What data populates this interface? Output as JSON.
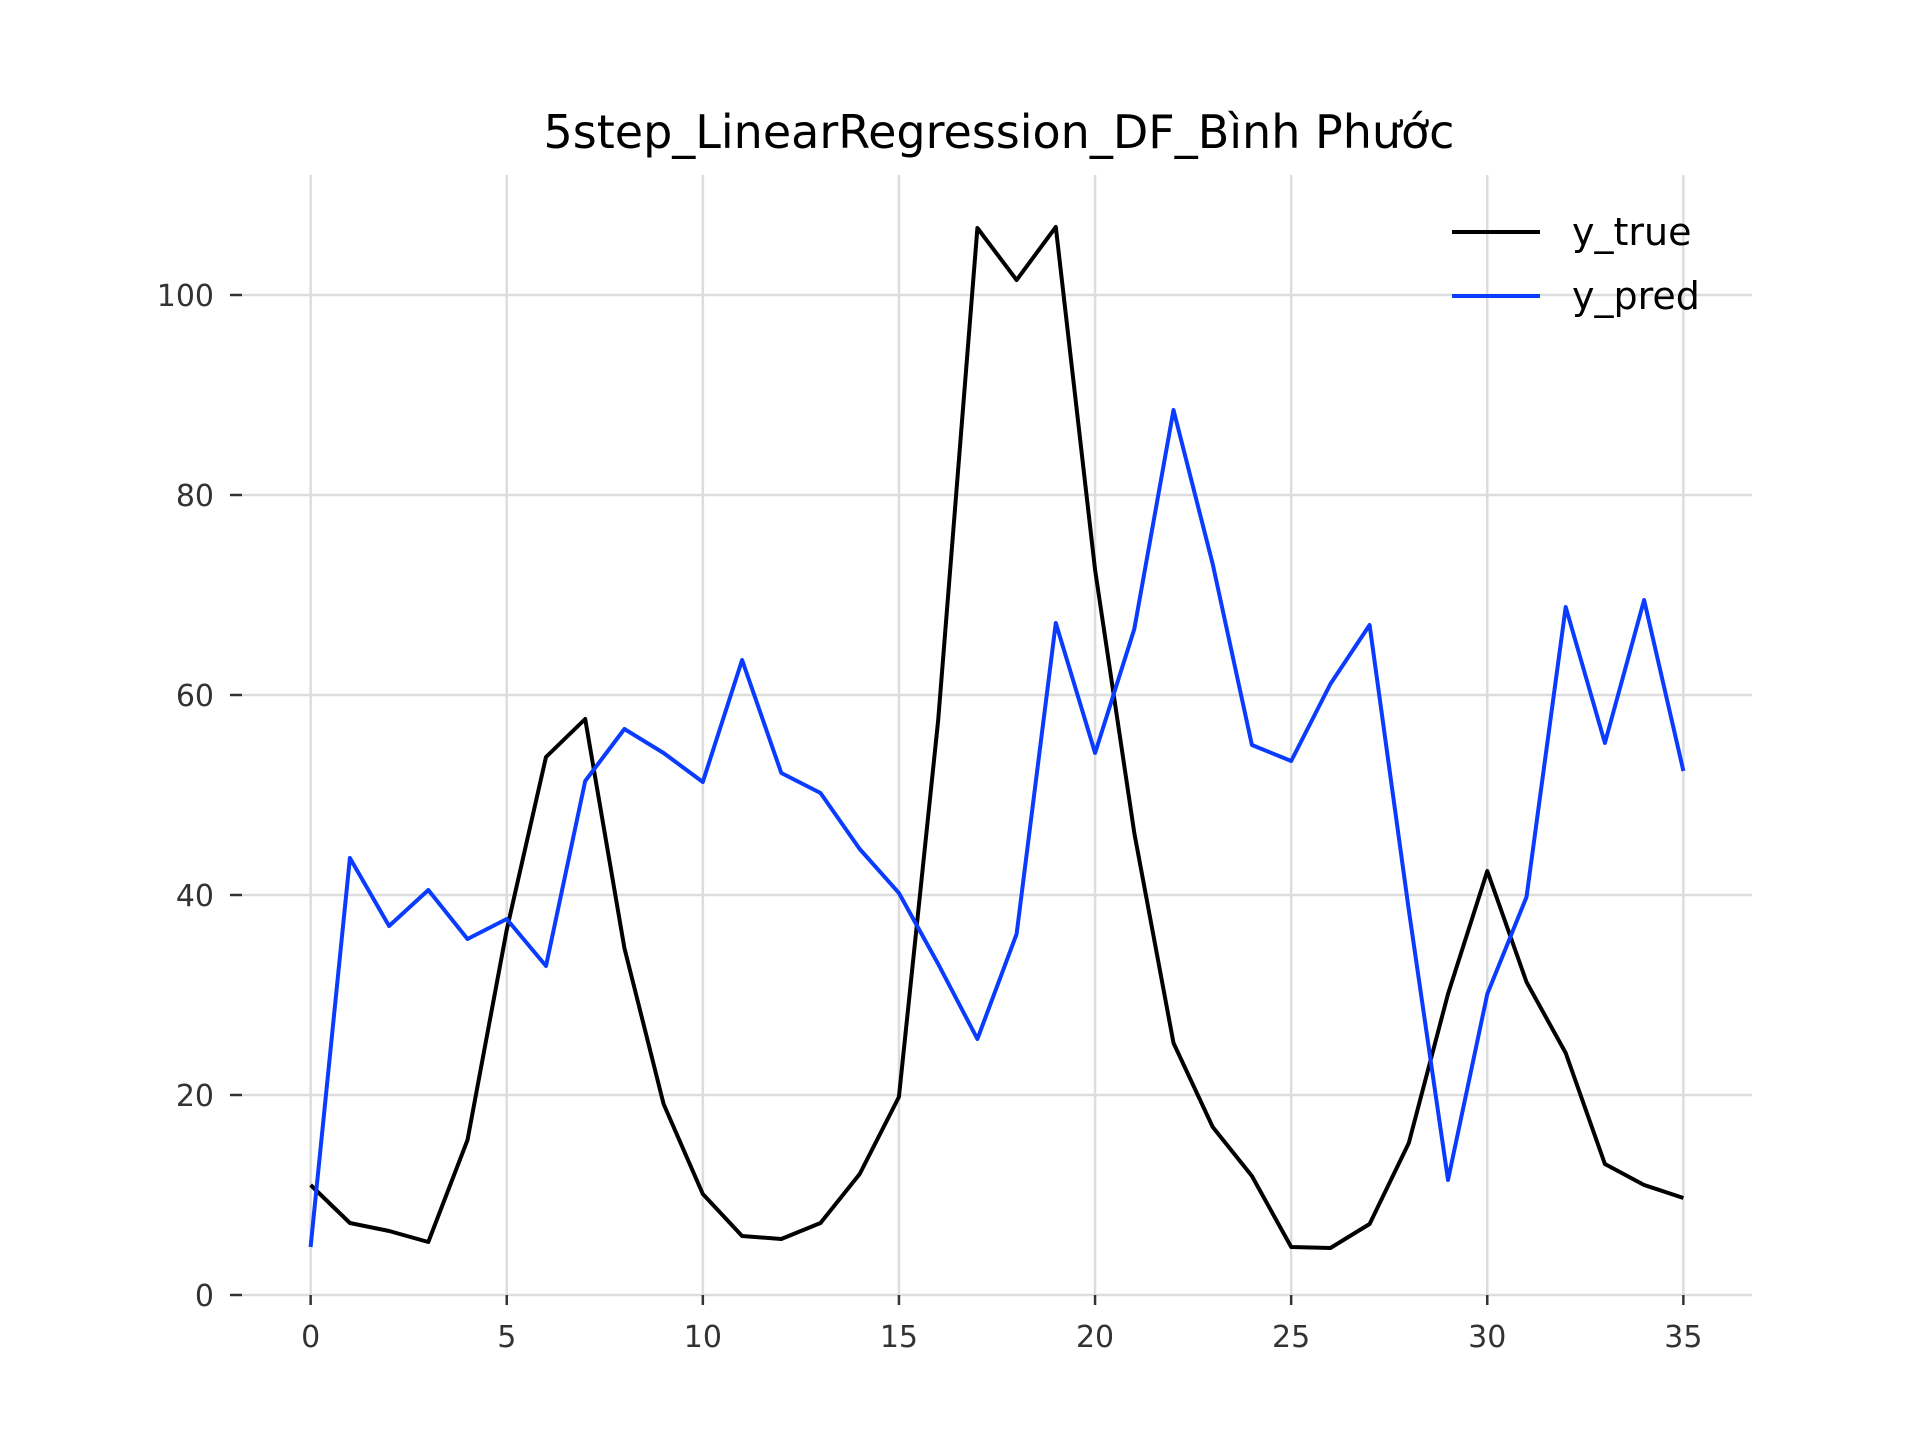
{
  "chart_data": {
    "type": "line",
    "title": "5step_LinearRegression_DF_Bình Phước",
    "xlabel": "",
    "ylabel": "",
    "xlim": [
      -1.75,
      36.75
    ],
    "ylim": [
      0,
      112
    ],
    "xticks": [
      0,
      5,
      10,
      15,
      20,
      25,
      30,
      35
    ],
    "yticks": [
      0,
      20,
      40,
      60,
      80,
      100
    ],
    "grid": true,
    "legend_position": "top-right",
    "x": [
      0,
      1,
      2,
      3,
      4,
      5,
      6,
      7,
      8,
      9,
      10,
      11,
      12,
      13,
      14,
      15,
      16,
      17,
      18,
      19,
      20,
      21,
      22,
      23,
      24,
      25,
      26,
      27,
      28,
      29,
      30,
      31,
      32,
      33,
      34,
      35
    ],
    "series": [
      {
        "name": "y_true",
        "color": "#000000",
        "values": [
          11,
          7.2,
          6.4,
          5.3,
          15.5,
          36.5,
          53.8,
          57.6,
          34.7,
          19.1,
          10.1,
          5.9,
          5.6,
          7.2,
          12.1,
          19.8,
          57.5,
          106.7,
          101.5,
          106.8,
          72.5,
          46.2,
          25.2,
          16.8,
          11.9,
          4.8,
          4.7,
          7.1,
          15.2,
          30.1,
          42.4,
          31.3,
          24.2,
          13.1,
          11,
          9.7
        ]
      },
      {
        "name": "y_pred",
        "color": "#0a3cff",
        "values": [
          4.8,
          43.7,
          36.9,
          40.5,
          35.6,
          37.6,
          32.9,
          51.4,
          56.6,
          54.2,
          51.3,
          63.5,
          52.2,
          50.2,
          44.6,
          40.2,
          33.1,
          25.6,
          36.1,
          67.2,
          54.2,
          66.6,
          88.5,
          73.1,
          55,
          53.4,
          61.1,
          67,
          38.5,
          11.5,
          30.1,
          39.8,
          68.8,
          55.2,
          69.5,
          52.4
        ]
      }
    ]
  }
}
